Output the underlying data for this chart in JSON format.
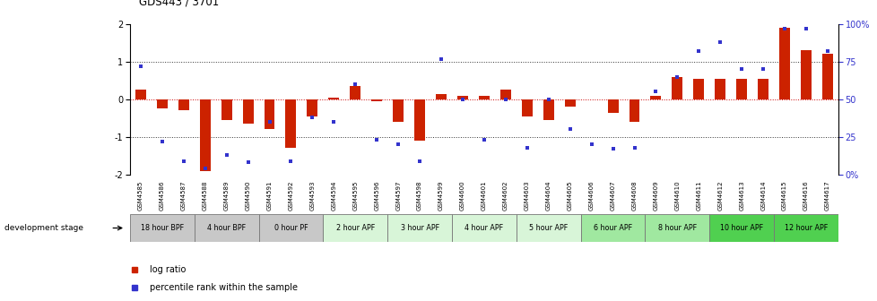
{
  "title": "GDS443 / 3701",
  "samples": [
    "GSM4585",
    "GSM4586",
    "GSM4587",
    "GSM4588",
    "GSM4589",
    "GSM4590",
    "GSM4591",
    "GSM4592",
    "GSM4593",
    "GSM4594",
    "GSM4595",
    "GSM4596",
    "GSM4597",
    "GSM4598",
    "GSM4599",
    "GSM4600",
    "GSM4601",
    "GSM4602",
    "GSM4603",
    "GSM4604",
    "GSM4605",
    "GSM4606",
    "GSM4607",
    "GSM4608",
    "GSM4609",
    "GSM4610",
    "GSM4611",
    "GSM4612",
    "GSM4613",
    "GSM4614",
    "GSM4615",
    "GSM4616",
    "GSM4617"
  ],
  "log_ratio": [
    0.25,
    -0.25,
    -0.3,
    -1.9,
    -0.55,
    -0.65,
    -0.8,
    -1.3,
    -0.45,
    0.05,
    0.35,
    -0.05,
    -0.6,
    -1.1,
    0.15,
    0.1,
    0.1,
    0.25,
    -0.45,
    -0.55,
    -0.2,
    0.0,
    -0.35,
    -0.6,
    0.1,
    0.6,
    0.55,
    0.55,
    0.55,
    0.55,
    1.9,
    1.3,
    1.2
  ],
  "percentile": [
    72,
    22,
    9,
    4,
    13,
    8,
    35,
    9,
    38,
    35,
    60,
    23,
    20,
    9,
    77,
    50,
    23,
    50,
    18,
    50,
    30,
    20,
    17,
    18,
    55,
    65,
    82,
    88,
    70,
    70,
    97,
    97,
    82
  ],
  "stage_groups": [
    {
      "label": "18 hour BPF",
      "start": 0,
      "end": 3,
      "color": "#c8c8c8"
    },
    {
      "label": "4 hour BPF",
      "start": 3,
      "end": 6,
      "color": "#c8c8c8"
    },
    {
      "label": "0 hour PF",
      "start": 6,
      "end": 9,
      "color": "#c8c8c8"
    },
    {
      "label": "2 hour APF",
      "start": 9,
      "end": 12,
      "color": "#d8f5d8"
    },
    {
      "label": "3 hour APF",
      "start": 12,
      "end": 15,
      "color": "#d8f5d8"
    },
    {
      "label": "4 hour APF",
      "start": 15,
      "end": 18,
      "color": "#d8f5d8"
    },
    {
      "label": "5 hour APF",
      "start": 18,
      "end": 21,
      "color": "#d8f5d8"
    },
    {
      "label": "6 hour APF",
      "start": 21,
      "end": 24,
      "color": "#a0e8a0"
    },
    {
      "label": "8 hour APF",
      "start": 24,
      "end": 27,
      "color": "#a0e8a0"
    },
    {
      "label": "10 hour APF",
      "start": 27,
      "end": 30,
      "color": "#50d050"
    },
    {
      "label": "12 hour APF",
      "start": 30,
      "end": 33,
      "color": "#50d050"
    }
  ],
  "bar_color": "#cc2200",
  "dot_color": "#3333cc",
  "ylim": [
    -2.0,
    2.0
  ],
  "yticks_left": [
    -2,
    -1,
    0,
    1,
    2
  ],
  "yticks_right": [
    0,
    25,
    50,
    75,
    100
  ],
  "ytick_right_labels": [
    "0%",
    "25",
    "50",
    "75",
    "100%"
  ],
  "background_color": "#ffffff",
  "legend_items": [
    "log ratio",
    "percentile rank within the sample"
  ]
}
